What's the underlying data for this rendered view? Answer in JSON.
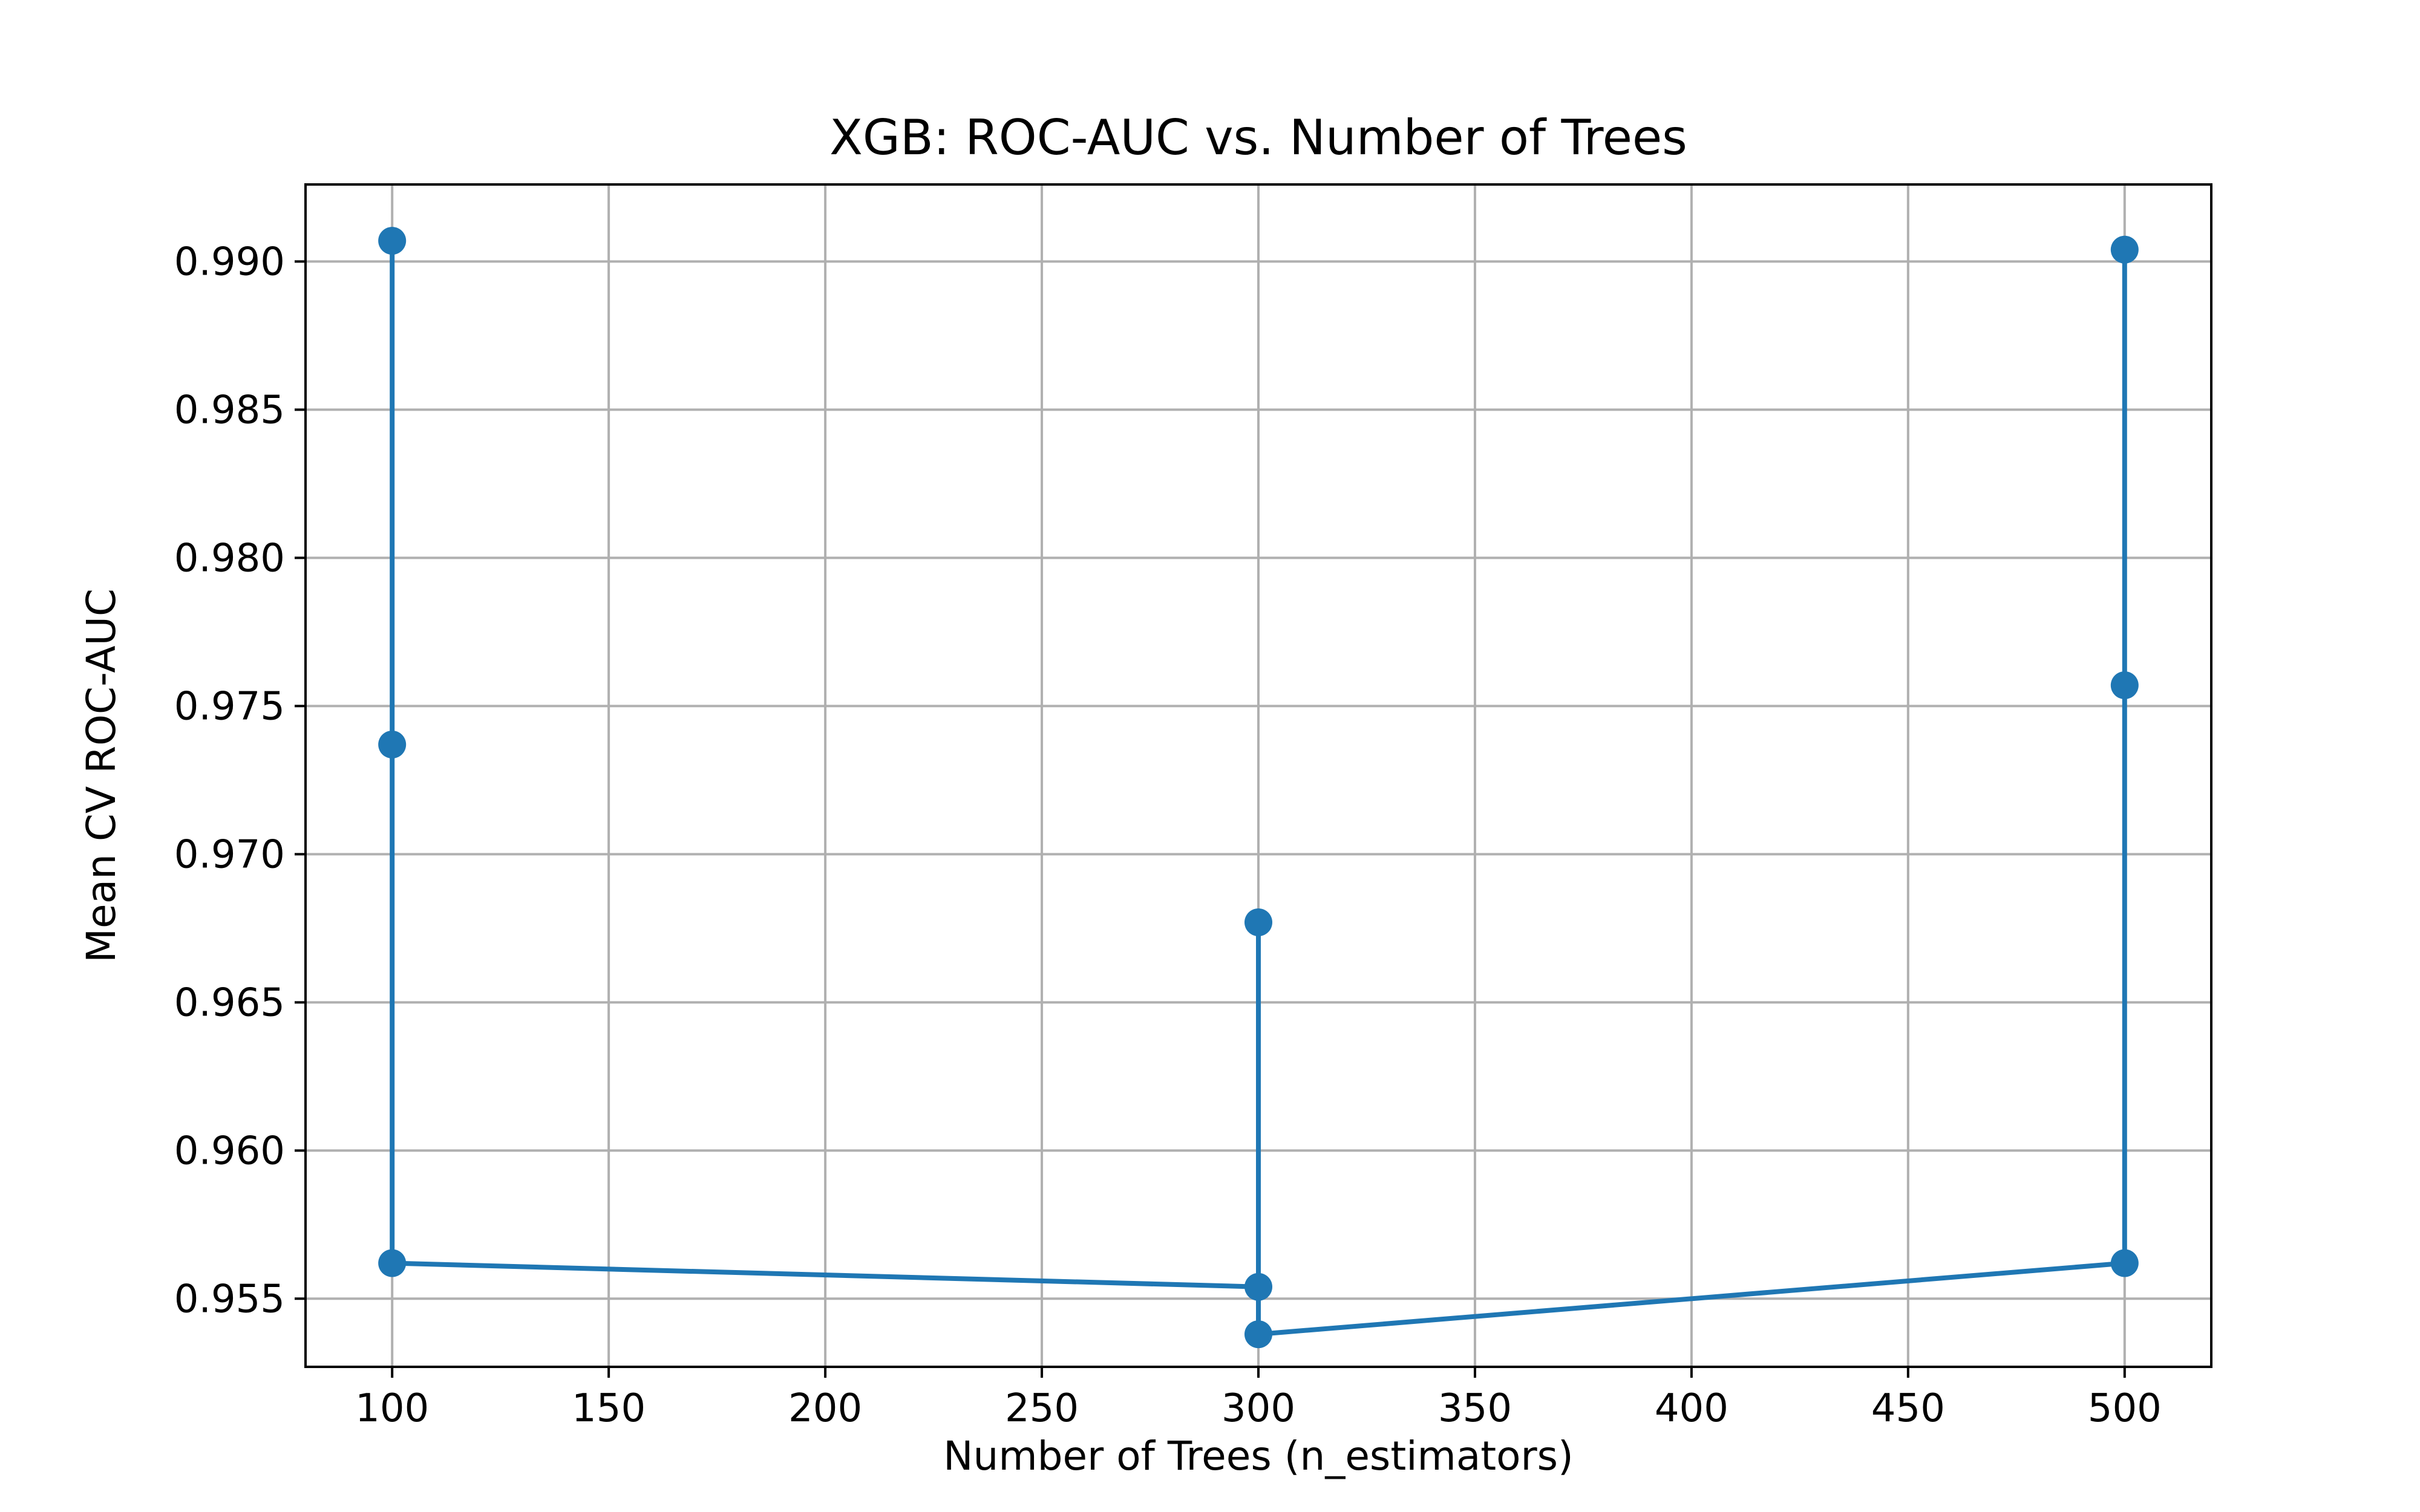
{
  "chart_data": {
    "type": "line",
    "title": "XGB: ROC-AUC vs. Number of Trees",
    "xlabel": "Number of Trees (n_estimators)",
    "ylabel": "Mean CV ROC-AUC",
    "xlim": [
      80,
      520
    ],
    "ylim": [
      0.9527,
      0.9926
    ],
    "x_ticks": [
      100,
      150,
      200,
      250,
      300,
      350,
      400,
      450,
      500
    ],
    "x_tick_labels": [
      "100",
      "150",
      "200",
      "250",
      "300",
      "350",
      "400",
      "450",
      "500"
    ],
    "y_ticks": [
      0.955,
      0.96,
      0.965,
      0.97,
      0.975,
      0.98,
      0.985,
      0.99
    ],
    "y_tick_labels": [
      "0.955",
      "0.960",
      "0.965",
      "0.970",
      "0.975",
      "0.980",
      "0.985",
      "0.990"
    ],
    "grid": true,
    "legend": false,
    "series": [
      {
        "color": "#1f77b4",
        "marker": "circle",
        "x": [
          100,
          100,
          100,
          300,
          300,
          300,
          500,
          500,
          500
        ],
        "y": [
          0.9907,
          0.9737,
          0.9562,
          0.9554,
          0.9677,
          0.9538,
          0.9562,
          0.9757,
          0.9904
        ]
      }
    ]
  }
}
